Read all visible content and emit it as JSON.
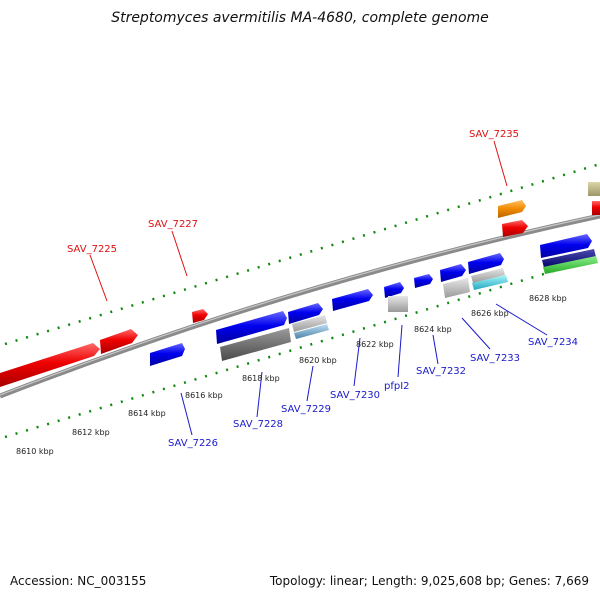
{
  "title": "Streptomyces avermitilis MA-4680, complete genome",
  "footer": {
    "accession": "Accession: NC_003155",
    "summary": "Topology: linear; Length: 9,025,608 bp; Genes: 7,669"
  },
  "colors": {
    "forward": "#ee0000",
    "reverse": "#0000ee",
    "backbone": "#8a8a8a",
    "tick": "#118811"
  },
  "scale_ticks": [
    "8610 kbp",
    "8612 kbp",
    "8614 kbp",
    "8616 kbp",
    "8618 kbp",
    "8620 kbp",
    "8622 kbp",
    "8624 kbp",
    "8626 kbp",
    "8628 kbp"
  ],
  "gene_labels": {
    "forward": [
      "SAV_7225",
      "SAV_7227",
      "SAV_7235"
    ],
    "reverse": [
      "SAV_7226",
      "SAV_7228",
      "SAV_7229",
      "SAV_7230",
      "pfpI2",
      "SAV_7232",
      "SAV_7233",
      "SAV_7234"
    ]
  }
}
